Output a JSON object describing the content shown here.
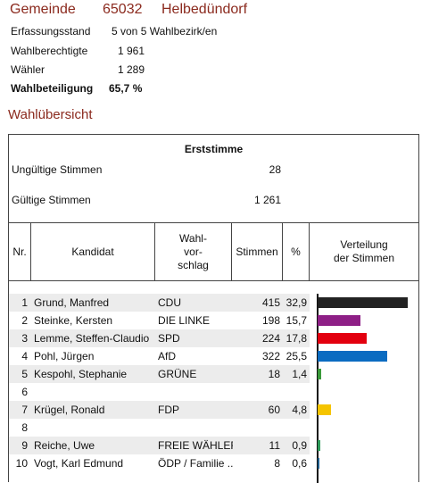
{
  "header": {
    "label": "Gemeinde",
    "code": "65032",
    "name": "Helbedündorf"
  },
  "info": {
    "erfassung_label": "Erfassungsstand",
    "erfassung_value": "5 von 5 Wahlbezirk/en",
    "berechtigte_label": "Wahlberechtigte",
    "berechtigte_value": "1 961",
    "waehler_label": "Wähler",
    "waehler_value": "1 289",
    "beteiligung_label": "Wahlbeteiligung",
    "beteiligung_value": "65,7 %"
  },
  "section_title": "Wahlübersicht",
  "table": {
    "title": "Erststimme",
    "ungueltig_label": "Ungültige Stimmen",
    "ungueltig_value": "28",
    "gueltig_label": "Gültige Stimmen",
    "gueltig_value": "1 261",
    "columns": {
      "nr": "Nr.",
      "kandidat": "Kandidat",
      "vorschlag": "Wahl-\nvor-\nschlag",
      "stimmen": "Stimmen",
      "pct": "%",
      "verteilung": "Verteilung\nder Stimmen"
    },
    "rows": [
      {
        "nr": "1",
        "kandidat": "Grund, Manfred",
        "partei": "CDU",
        "stimmen": "415",
        "pct": "32,9",
        "pct_value": 32.9,
        "color": "#222222"
      },
      {
        "nr": "2",
        "kandidat": "Steinke, Kersten",
        "partei": "DIE LINKE",
        "stimmen": "198",
        "pct": "15,7",
        "pct_value": 15.7,
        "color": "#8e1f86"
      },
      {
        "nr": "3",
        "kandidat": "Lemme, Steffen-Claudio",
        "partei": "SPD",
        "stimmen": "224",
        "pct": "17,8",
        "pct_value": 17.8,
        "color": "#e3000f"
      },
      {
        "nr": "4",
        "kandidat": "Pohl, Jürgen",
        "partei": "AfD",
        "stimmen": "322",
        "pct": "25,5",
        "pct_value": 25.5,
        "color": "#0a6bc1"
      },
      {
        "nr": "5",
        "kandidat": "Kespohl, Stephanie",
        "partei": "GRÜNE",
        "stimmen": "18",
        "pct": "1,4",
        "pct_value": 1.4,
        "color": "#3a9a3a"
      },
      {
        "nr": "6",
        "kandidat": "",
        "partei": "",
        "stimmen": "",
        "pct": "",
        "pct_value": 0,
        "color": "#ffffff"
      },
      {
        "nr": "7",
        "kandidat": "Krügel, Ronald",
        "partei": "FDP",
        "stimmen": "60",
        "pct": "4,8",
        "pct_value": 4.8,
        "color": "#f5c400"
      },
      {
        "nr": "8",
        "kandidat": "",
        "partei": "",
        "stimmen": "",
        "pct": "",
        "pct_value": 0,
        "color": "#ffffff"
      },
      {
        "nr": "9",
        "kandidat": "Reiche, Uwe",
        "partei": "FREIE WÄHLER",
        "stimmen": "11",
        "pct": "0,9",
        "pct_value": 0.9,
        "color": "#2e9b5a"
      },
      {
        "nr": "10",
        "kandidat": "Vogt, Karl Edmund",
        "partei": "ÖDP / Familie ..",
        "stimmen": "8",
        "pct": "0,6",
        "pct_value": 0.6,
        "color": "#1f5e8c"
      }
    ]
  },
  "chart_max_pct": 32.9
}
